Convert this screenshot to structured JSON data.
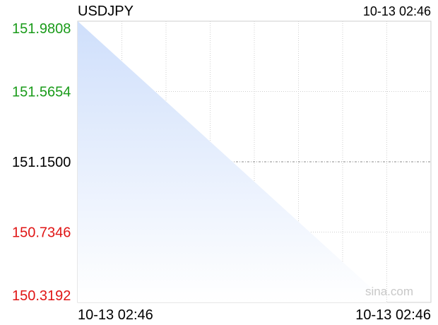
{
  "chart_data": {
    "type": "area",
    "title": "USDJPY",
    "timestamp": "10-13 02:46",
    "x_start_label": "10-13 02:46",
    "x_end_label": "10-13 02:46",
    "watermark": "sina.com",
    "y_ticks": [
      "151.9808",
      "151.5654",
      "151.1500",
      "150.7346",
      "150.3192"
    ],
    "ylim": [
      150.3192,
      151.9808
    ],
    "reference_value": 151.15,
    "series": [
      {
        "values": [
          151.9808,
          150.3192
        ]
      }
    ],
    "grid": true,
    "colors": {
      "up": "#1a9b1a",
      "down": "#e01515",
      "neutral": "#000000",
      "fill_top": "#cfdffb",
      "fill_bottom": "#ffffff",
      "grid": "#cfcfcf",
      "watermark": "#c8c8c8"
    }
  }
}
